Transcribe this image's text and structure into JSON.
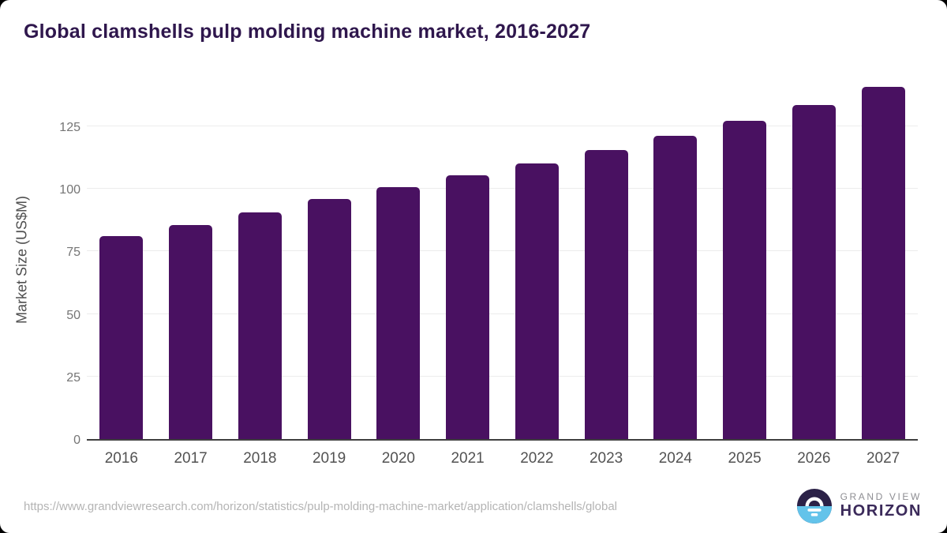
{
  "header": {
    "title": "Global clamshells pulp molding machine market, 2016-2027"
  },
  "chart_data": {
    "type": "bar",
    "title": "Global clamshells pulp molding machine market, 2016-2027",
    "categories": [
      "2016",
      "2017",
      "2018",
      "2019",
      "2020",
      "2021",
      "2022",
      "2023",
      "2024",
      "2025",
      "2026",
      "2027"
    ],
    "values": [
      81.0,
      85.6,
      90.7,
      96.0,
      100.6,
      105.4,
      110.2,
      115.4,
      121.1,
      127.0,
      133.4,
      140.6
    ],
    "xlabel": "",
    "ylabel": "Market Size (US$M)",
    "yticks": [
      0,
      25,
      50,
      75,
      100,
      125
    ],
    "ylim": [
      0,
      144.5
    ],
    "grid": "horizontal",
    "legend_position": "none",
    "bar_color": "#491161"
  },
  "footer": {
    "source_url": "https://www.grandviewresearch.com/horizon/statistics/pulp-molding-machine-market/application/clamshells/global",
    "brand": {
      "line1": "GRAND VIEW",
      "line2": "HORIZON"
    }
  },
  "colors": {
    "bar": "#491161",
    "title_text": "#2f174d",
    "tick_text": "#757575",
    "category_text": "#525252",
    "gridline": "#ececec",
    "axis_line": "#3f3f3f",
    "url_text": "#b4b4b4",
    "brand_gray": "#8d8d92",
    "brand_purple": "#3b2a5a",
    "logo_dark": "#2b2147",
    "logo_blue": "#63c3ea",
    "card_background": "#ffffff"
  }
}
